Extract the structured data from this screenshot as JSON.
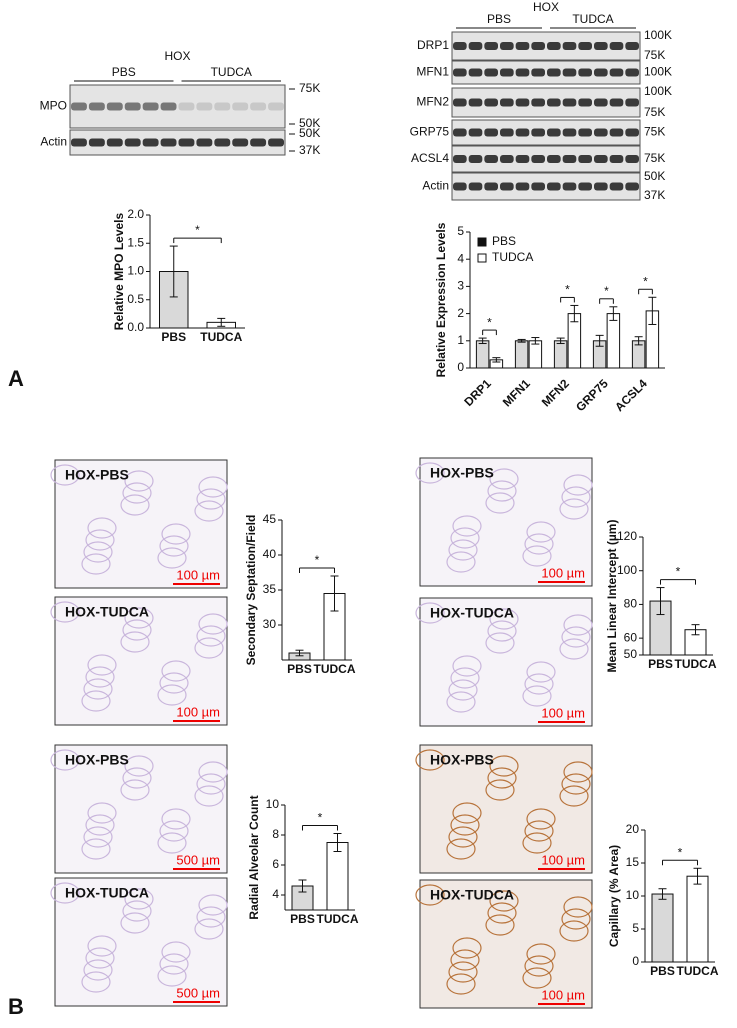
{
  "panel_labels": [
    "A",
    "B"
  ],
  "blots": [
    {
      "title": "HOX",
      "groups": [
        "PBS",
        "TUDCA"
      ],
      "rows": [
        {
          "label": "MPO",
          "markers": [
            "75K",
            "50K"
          ]
        },
        {
          "label": "Actin",
          "markers": [
            "50K",
            "37K"
          ]
        }
      ]
    },
    {
      "title": "HOX",
      "groups": [
        "PBS",
        "TUDCA"
      ],
      "rows": [
        {
          "label": "DRP1",
          "markers": [
            "100K",
            "75K"
          ]
        },
        {
          "label": "MFN1",
          "markers": [
            "100K"
          ]
        },
        {
          "label": "MFN2",
          "markers": [
            "100K",
            "75K"
          ]
        },
        {
          "label": "GRP75",
          "markers": [
            "75K"
          ]
        },
        {
          "label": "ACSL4",
          "markers": [
            "75K"
          ]
        },
        {
          "label": "Actin",
          "markers": [
            "50K",
            "37K"
          ]
        }
      ]
    }
  ],
  "micrographs": [
    {
      "label": "HOX-PBS",
      "scale": "100 µm"
    },
    {
      "label": "HOX-TUDCA",
      "scale": "100 µm"
    },
    {
      "label": "HOX-PBS",
      "scale": "100 µm"
    },
    {
      "label": "HOX-TUDCA",
      "scale": "100 µm"
    },
    {
      "label": "HOX-PBS",
      "scale": "500 µm"
    },
    {
      "label": "HOX-TUDCA",
      "scale": "500 µm"
    },
    {
      "label": "HOX-PBS",
      "scale": "100 µm"
    },
    {
      "label": "HOX-TUDCA",
      "scale": "100 µm"
    }
  ],
  "chart_data": [
    {
      "type": "bar",
      "y_label": "Relative MPO Levels",
      "categories": [
        "PBS",
        "TUDCA"
      ],
      "values": [
        1.0,
        0.1
      ],
      "errors": [
        0.45,
        0.07
      ],
      "colors": [
        "#d9d9d9",
        "#ffffff"
      ],
      "ylim": [
        0,
        2
      ],
      "yticks": [
        {
          "value": 0,
          "label": "0.0"
        },
        0.5,
        {
          "value": 1,
          "label": "1.0"
        },
        1.5,
        {
          "value": 2,
          "label": "2.0"
        }
      ],
      "annotation": "*"
    },
    {
      "type": "grouped_bar",
      "y_label": "Relative Expression Levels",
      "categories": [
        "DRP1",
        "MFN1",
        "MFN2",
        "GRP75",
        "ACSL4"
      ],
      "series": [
        {
          "name": "PBS",
          "color": "#d9d9d9",
          "values": [
            1.0,
            1.0,
            1.0,
            1.0,
            1.0
          ],
          "errors": [
            0.1,
            0.05,
            0.1,
            0.2,
            0.15
          ]
        },
        {
          "name": "TUDCA",
          "color": "#ffffff",
          "values": [
            0.3,
            1.0,
            2.0,
            2.0,
            2.1
          ],
          "errors": [
            0.08,
            0.12,
            0.3,
            0.25,
            0.5
          ]
        }
      ],
      "ylim": [
        0,
        5
      ],
      "yticks": [
        0,
        1,
        2,
        3,
        4,
        5
      ],
      "legend": "upper left",
      "annotation": "*",
      "significant": [
        true,
        false,
        true,
        true,
        true
      ]
    },
    {
      "type": "bar",
      "y_label": "Secondary  Septation/Field",
      "categories": [
        "PBS",
        "TUDCA"
      ],
      "values": [
        26,
        34.5
      ],
      "errors": [
        0.4,
        2.5
      ],
      "colors": [
        "#d9d9d9",
        "#ffffff"
      ],
      "ylim": [
        25,
        45
      ],
      "yticks": [
        30,
        35,
        40,
        45
      ],
      "annotation": "*"
    },
    {
      "type": "bar",
      "y_label": "Mean Linear Intercept (µm)",
      "categories": [
        "PBS",
        "TUDCA"
      ],
      "values": [
        82,
        65
      ],
      "errors": [
        8,
        3
      ],
      "colors": [
        "#d9d9d9",
        "#ffffff"
      ],
      "ylim": [
        50,
        120
      ],
      "yticks": [
        50,
        60,
        80,
        100,
        120
      ],
      "annotation": "*"
    },
    {
      "type": "bar",
      "y_label": "Radial Alveolar Count",
      "categories": [
        "PBS",
        "TUDCA"
      ],
      "values": [
        4.6,
        7.5
      ],
      "errors": [
        0.4,
        0.6
      ],
      "colors": [
        "#d9d9d9",
        "#ffffff"
      ],
      "ylim": [
        3,
        10
      ],
      "yticks": [
        4,
        6,
        8,
        10
      ],
      "annotation": "*"
    },
    {
      "type": "bar",
      "y_label": "Capillary (% Area)",
      "categories": [
        "PBS",
        "TUDCA"
      ],
      "values": [
        10.3,
        13
      ],
      "errors": [
        0.8,
        1.2
      ],
      "colors": [
        "#d9d9d9",
        "#ffffff"
      ],
      "ylim": [
        0,
        20
      ],
      "yticks": [
        0,
        5,
        10,
        15,
        20
      ],
      "annotation": "*"
    }
  ]
}
